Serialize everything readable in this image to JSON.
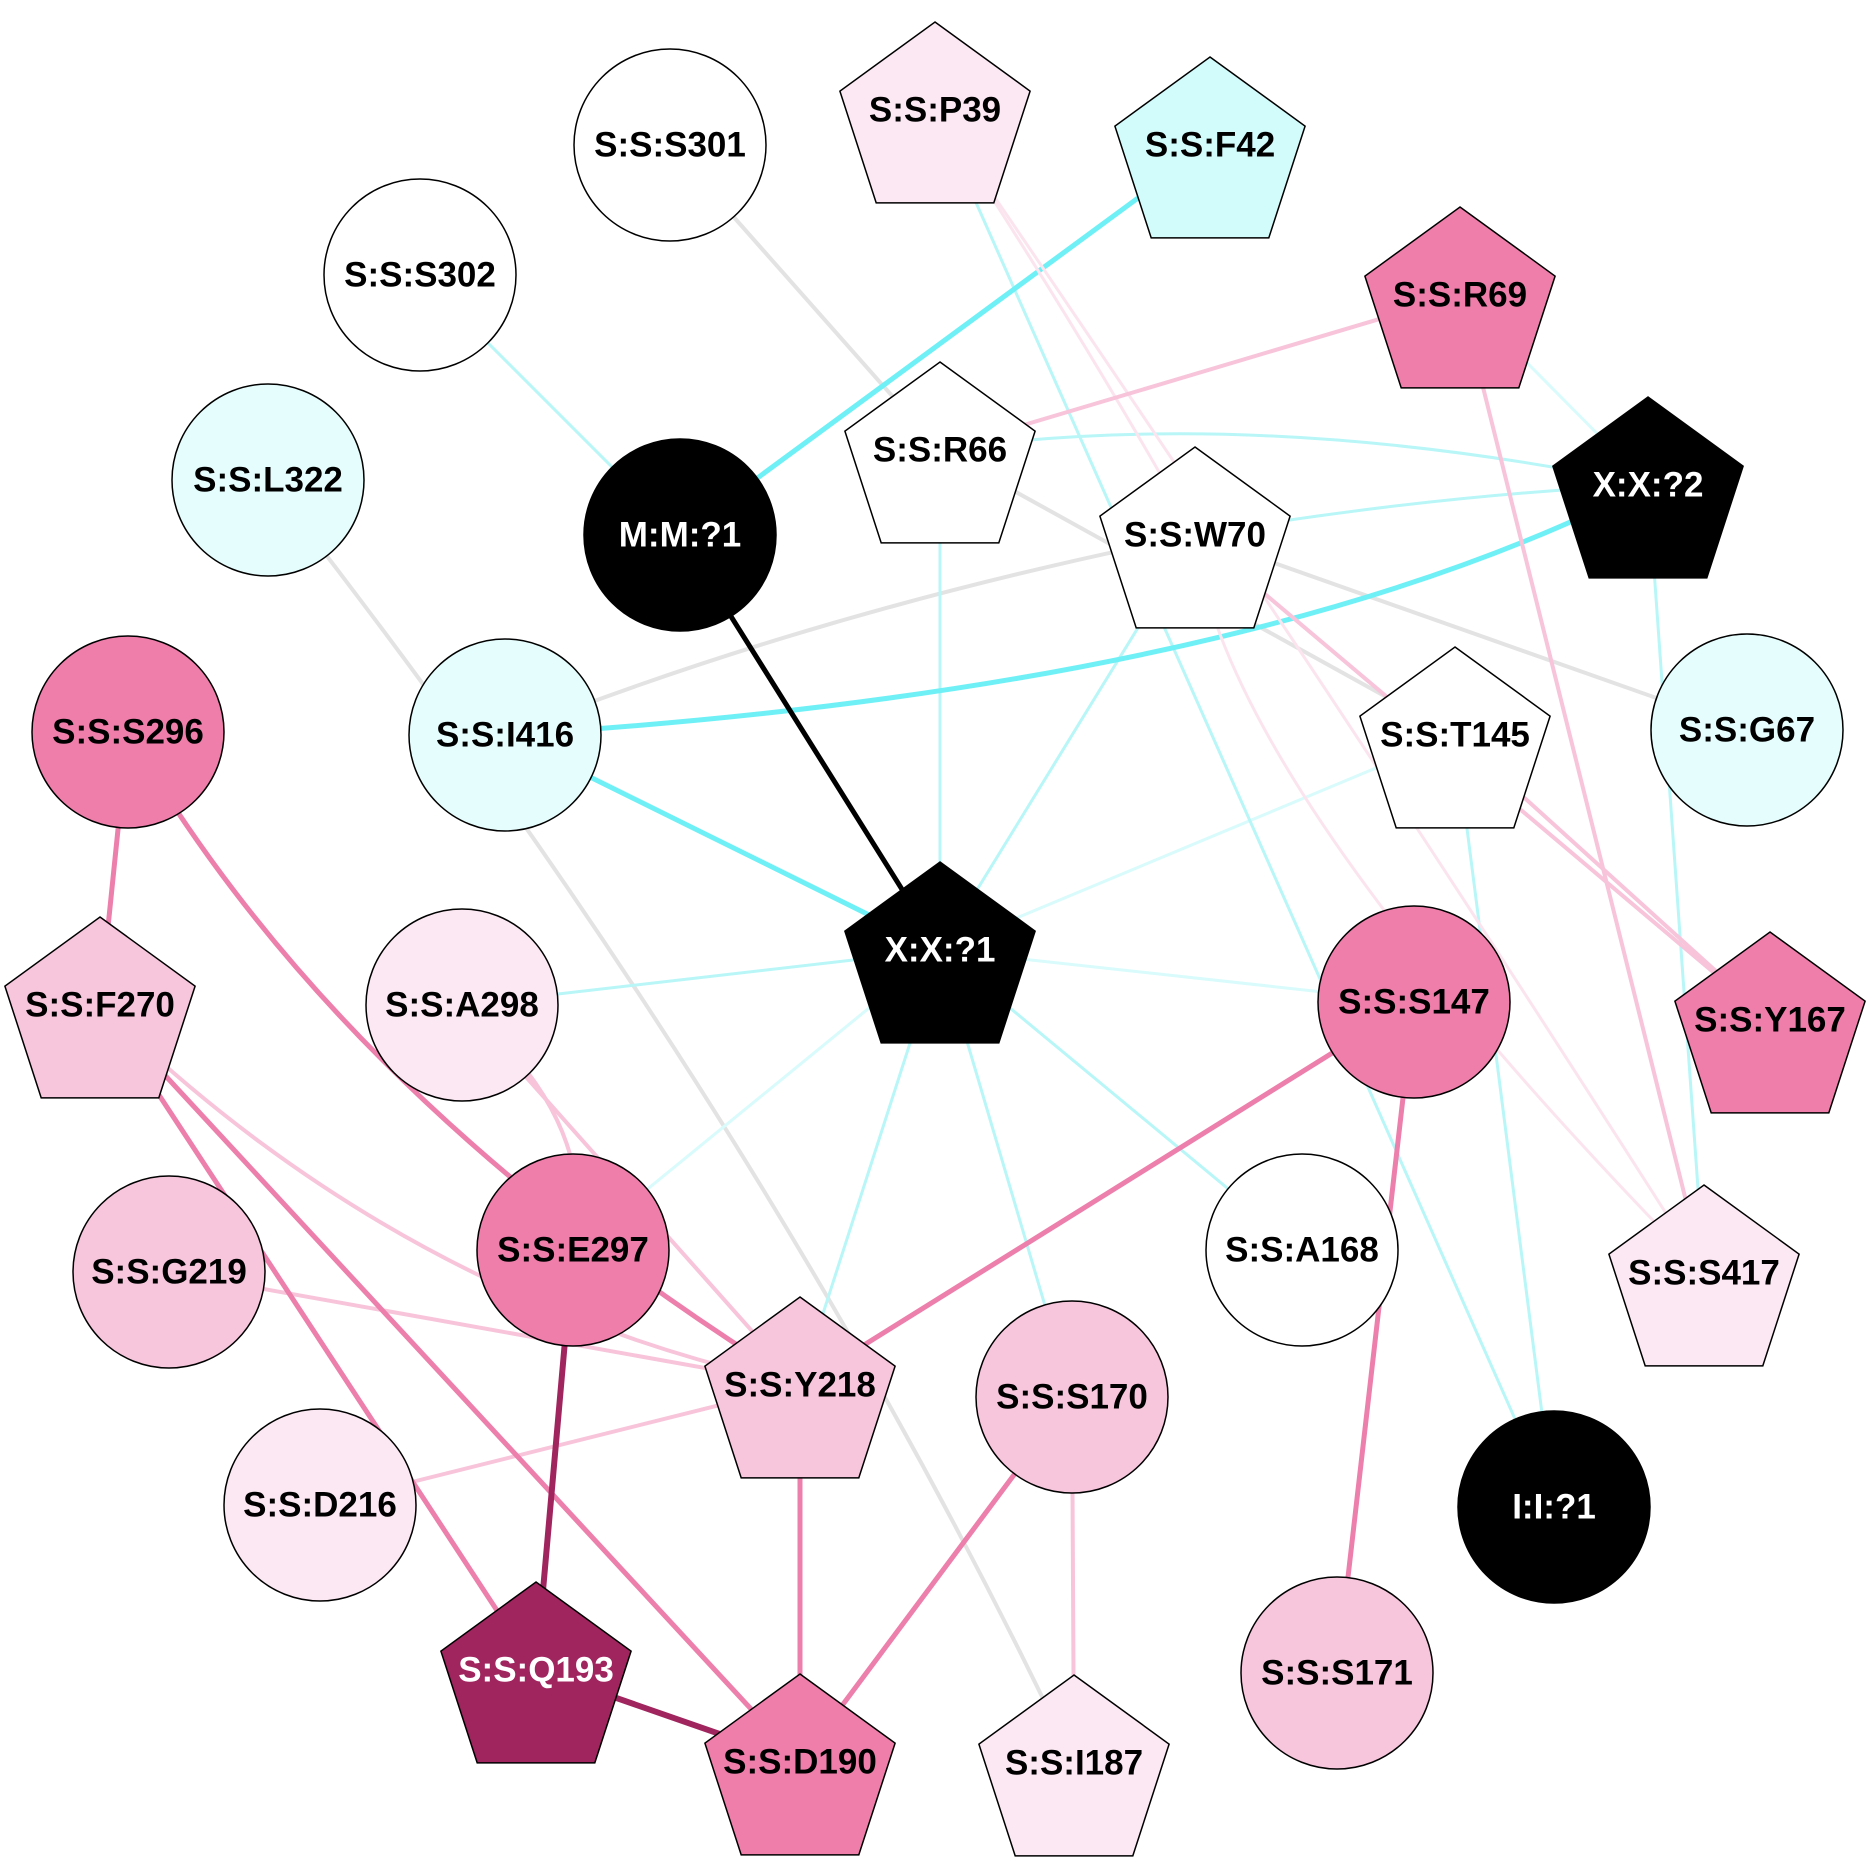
{
  "palette": {
    "white": "#ffffff",
    "black": "#000000",
    "cyan_light": "#e6fdfd",
    "cyan": "#d2fbfb",
    "pink_pale": "#fbe8f2",
    "pink_light": "#f7c6dc",
    "pink": "#ef7eab",
    "magenta": "#a0245e",
    "edge_gray": "#e3e3e3",
    "edge_cyan_faint": "#d9fbfb",
    "edge_cyan": "#b8f6f8",
    "edge_cyan_strong": "#6ef0f6",
    "edge_pink_faint": "#fbe4ee",
    "edge_pink_light": "#f7c4da",
    "edge_pink": "#ec7fab",
    "edge_magenta": "#a0245e"
  },
  "nodes": [
    {
      "id": "P39",
      "label": "S:S:P39",
      "shape": "pentagon",
      "fill": "pink_pale",
      "text": "black"
    },
    {
      "id": "F42",
      "label": "S:S:F42",
      "shape": "pentagon",
      "fill": "cyan",
      "text": "black"
    },
    {
      "id": "S301",
      "label": "S:S:S301",
      "shape": "circle",
      "fill": "white",
      "text": "black"
    },
    {
      "id": "S302",
      "label": "S:S:S302",
      "shape": "circle",
      "fill": "white",
      "text": "black"
    },
    {
      "id": "R69",
      "label": "S:S:R69",
      "shape": "pentagon",
      "fill": "pink",
      "text": "black"
    },
    {
      "id": "L322",
      "label": "S:S:L322",
      "shape": "circle",
      "fill": "cyan_light",
      "text": "black"
    },
    {
      "id": "M1",
      "label": "M:M:?1",
      "shape": "circle",
      "fill": "black",
      "text": "white"
    },
    {
      "id": "R66",
      "label": "S:S:R66",
      "shape": "pentagon",
      "fill": "white",
      "text": "black"
    },
    {
      "id": "X2",
      "label": "X:X:?2",
      "shape": "pentagon",
      "fill": "black",
      "text": "white"
    },
    {
      "id": "W70",
      "label": "S:S:W70",
      "shape": "pentagon",
      "fill": "white",
      "text": "black"
    },
    {
      "id": "S296",
      "label": "S:S:S296",
      "shape": "circle",
      "fill": "pink",
      "text": "black"
    },
    {
      "id": "I416",
      "label": "S:S:I416",
      "shape": "circle",
      "fill": "cyan_light",
      "text": "black"
    },
    {
      "id": "T145",
      "label": "S:S:T145",
      "shape": "pentagon",
      "fill": "white",
      "text": "black"
    },
    {
      "id": "G67",
      "label": "S:S:G67",
      "shape": "circle",
      "fill": "cyan_light",
      "text": "black"
    },
    {
      "id": "F270",
      "label": "S:S:F270",
      "shape": "pentagon",
      "fill": "pink_light",
      "text": "black"
    },
    {
      "id": "X1",
      "label": "X:X:?1",
      "shape": "pentagon",
      "fill": "black",
      "text": "white"
    },
    {
      "id": "A298",
      "label": "S:S:A298",
      "shape": "circle",
      "fill": "pink_pale",
      "text": "black"
    },
    {
      "id": "S147",
      "label": "S:S:S147",
      "shape": "circle",
      "fill": "pink",
      "text": "black"
    },
    {
      "id": "Y167",
      "label": "S:S:Y167",
      "shape": "pentagon",
      "fill": "pink",
      "text": "black"
    },
    {
      "id": "G219",
      "label": "S:S:G219",
      "shape": "circle",
      "fill": "pink_light",
      "text": "black"
    },
    {
      "id": "E297",
      "label": "S:S:E297",
      "shape": "circle",
      "fill": "pink",
      "text": "black"
    },
    {
      "id": "A168",
      "label": "S:S:A168",
      "shape": "circle",
      "fill": "white",
      "text": "black"
    },
    {
      "id": "S417",
      "label": "S:S:S417",
      "shape": "pentagon",
      "fill": "pink_pale",
      "text": "black"
    },
    {
      "id": "Y218",
      "label": "S:S:Y218",
      "shape": "pentagon",
      "fill": "pink_light",
      "text": "black"
    },
    {
      "id": "S170",
      "label": "S:S:S170",
      "shape": "circle",
      "fill": "pink_light",
      "text": "black"
    },
    {
      "id": "D216",
      "label": "S:S:D216",
      "shape": "circle",
      "fill": "pink_pale",
      "text": "black"
    },
    {
      "id": "I1",
      "label": "I:I:?1",
      "shape": "circle",
      "fill": "black",
      "text": "white"
    },
    {
      "id": "Q193",
      "label": "S:S:Q193",
      "shape": "pentagon",
      "fill": "magenta",
      "text": "white"
    },
    {
      "id": "S171",
      "label": "S:S:S171",
      "shape": "circle",
      "fill": "pink_light",
      "text": "black"
    },
    {
      "id": "D190",
      "label": "S:S:D190",
      "shape": "pentagon",
      "fill": "pink",
      "text": "black"
    },
    {
      "id": "I187",
      "label": "S:S:I187",
      "shape": "pentagon",
      "fill": "pink_pale",
      "text": "black"
    }
  ],
  "edges": [
    {
      "from": "S301",
      "to": "R66",
      "color": "edge_gray",
      "weight": 4
    },
    {
      "from": "W70",
      "to": "I416",
      "color": "edge_gray",
      "weight": 4
    },
    {
      "from": "W70",
      "to": "G67",
      "color": "edge_gray",
      "weight": 4
    },
    {
      "from": "R66",
      "to": "T145",
      "color": "edge_gray",
      "weight": 4
    },
    {
      "from": "L322",
      "to": "I187",
      "color": "edge_gray",
      "weight": 4
    },
    {
      "from": "R69",
      "to": "X2",
      "color": "edge_cyan_faint",
      "weight": 3
    },
    {
      "from": "X1",
      "to": "T145",
      "color": "edge_cyan_faint",
      "weight": 3
    },
    {
      "from": "X1",
      "to": "E297",
      "color": "edge_cyan_faint",
      "weight": 3
    },
    {
      "from": "X1",
      "to": "S147",
      "color": "edge_cyan_faint",
      "weight": 3
    },
    {
      "from": "S302",
      "to": "M1",
      "color": "edge_cyan",
      "weight": 3
    },
    {
      "from": "R66",
      "to": "X2",
      "color": "edge_cyan",
      "weight": 3
    },
    {
      "from": "W70",
      "to": "X2",
      "color": "edge_cyan",
      "weight": 3
    },
    {
      "from": "R66",
      "to": "X1",
      "color": "edge_cyan",
      "weight": 3
    },
    {
      "from": "W70",
      "to": "X1",
      "color": "edge_cyan",
      "weight": 3
    },
    {
      "from": "X1",
      "to": "A298",
      "color": "edge_cyan",
      "weight": 3
    },
    {
      "from": "X1",
      "to": "Y218",
      "color": "edge_cyan",
      "weight": 3
    },
    {
      "from": "X1",
      "to": "S170",
      "color": "edge_cyan",
      "weight": 3
    },
    {
      "from": "X1",
      "to": "A168",
      "color": "edge_cyan",
      "weight": 3
    },
    {
      "from": "P39",
      "to": "I1",
      "color": "edge_cyan",
      "weight": 3
    },
    {
      "from": "T145",
      "to": "I1",
      "color": "edge_cyan",
      "weight": 3
    },
    {
      "from": "X2",
      "to": "S417",
      "color": "edge_cyan",
      "weight": 3
    },
    {
      "from": "F42",
      "to": "M1",
      "color": "edge_cyan_strong",
      "weight": 5
    },
    {
      "from": "I416",
      "to": "X1",
      "color": "edge_cyan_strong",
      "weight": 5
    },
    {
      "from": "X2",
      "to": "I416",
      "color": "edge_cyan_strong",
      "weight": 5
    },
    {
      "from": "M1",
      "to": "X1",
      "color": "black",
      "weight": 5
    },
    {
      "from": "P39",
      "to": "S417",
      "color": "edge_pink_faint",
      "weight": 3
    },
    {
      "from": "W70",
      "to": "S417",
      "color": "edge_pink_faint",
      "weight": 3
    },
    {
      "from": "P39",
      "to": "W70",
      "color": "edge_pink_faint",
      "weight": 3
    },
    {
      "from": "R69",
      "to": "R66",
      "color": "edge_pink_light",
      "weight": 4
    },
    {
      "from": "R69",
      "to": "S417",
      "color": "edge_pink_light",
      "weight": 4
    },
    {
      "from": "W70",
      "to": "Y167",
      "color": "edge_pink_light",
      "weight": 4
    },
    {
      "from": "T145",
      "to": "Y167",
      "color": "edge_pink_light",
      "weight": 4
    },
    {
      "from": "A298",
      "to": "Y218",
      "color": "edge_pink_light",
      "weight": 4
    },
    {
      "from": "A298",
      "to": "E297",
      "color": "edge_pink_light",
      "weight": 4
    },
    {
      "from": "F270",
      "to": "Y218",
      "color": "edge_pink_light",
      "weight": 4
    },
    {
      "from": "G219",
      "to": "Y218",
      "color": "edge_pink_light",
      "weight": 4
    },
    {
      "from": "D216",
      "to": "Y218",
      "color": "edge_pink_light",
      "weight": 4
    },
    {
      "from": "S170",
      "to": "I187",
      "color": "edge_pink_light",
      "weight": 4
    },
    {
      "from": "S296",
      "to": "F270",
      "color": "edge_pink",
      "weight": 5
    },
    {
      "from": "S296",
      "to": "Y218",
      "color": "edge_pink",
      "weight": 5
    },
    {
      "from": "F270",
      "to": "Q193",
      "color": "edge_pink",
      "weight": 5
    },
    {
      "from": "F270",
      "to": "D190",
      "color": "edge_pink",
      "weight": 5
    },
    {
      "from": "S147",
      "to": "Y218",
      "color": "edge_pink",
      "weight": 5
    },
    {
      "from": "S147",
      "to": "S171",
      "color": "edge_pink",
      "weight": 5
    },
    {
      "from": "Y218",
      "to": "D190",
      "color": "edge_pink",
      "weight": 5
    },
    {
      "from": "S170",
      "to": "D190",
      "color": "edge_pink",
      "weight": 5
    },
    {
      "from": "E297",
      "to": "Q193",
      "color": "edge_magenta",
      "weight": 6
    },
    {
      "from": "Q193",
      "to": "D190",
      "color": "edge_magenta",
      "weight": 6
    }
  ]
}
